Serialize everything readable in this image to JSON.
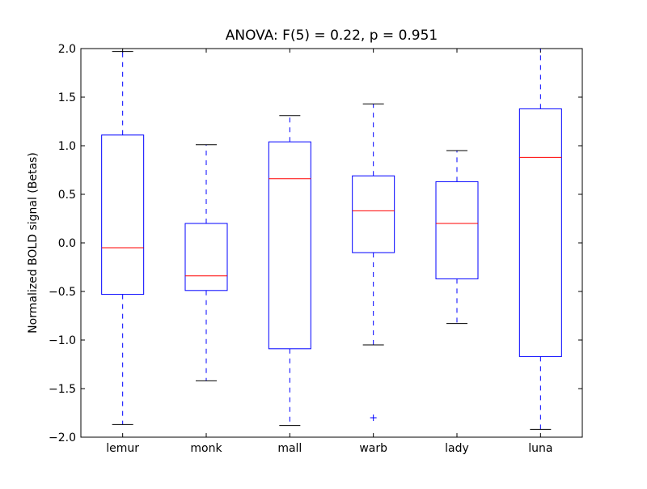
{
  "chart_data": {
    "type": "boxplot",
    "title": "ANOVA: F(5) = 0.22, p = 0.951",
    "xlabel": "",
    "ylabel": "Normalized BOLD signal (Betas)",
    "ylim": [
      -2.0,
      2.0
    ],
    "yticks": [
      -2.0,
      -1.5,
      -1.0,
      -0.5,
      0.0,
      0.5,
      1.0,
      1.5,
      2.0
    ],
    "ytick_labels": [
      "−2.0",
      "−1.5",
      "−1.0",
      "−0.5",
      "0.0",
      "0.5",
      "1.0",
      "1.5",
      "2.0"
    ],
    "categories": [
      "lemur",
      "monk",
      "mall",
      "warb",
      "lady",
      "luna"
    ],
    "boxes": [
      {
        "whisker_low": -1.87,
        "q1": -0.53,
        "median": -0.05,
        "q3": 1.11,
        "whisker_high": 1.97,
        "outliers": []
      },
      {
        "whisker_low": -1.42,
        "q1": -0.49,
        "median": -0.34,
        "q3": 0.2,
        "whisker_high": 1.01,
        "outliers": []
      },
      {
        "whisker_low": -1.88,
        "q1": -1.09,
        "median": 0.66,
        "q3": 1.04,
        "whisker_high": 1.31,
        "outliers": []
      },
      {
        "whisker_low": -1.05,
        "q1": -0.1,
        "median": 0.33,
        "q3": 0.69,
        "whisker_high": 1.43,
        "outliers": [
          -1.8
        ]
      },
      {
        "whisker_low": -0.83,
        "q1": -0.37,
        "median": 0.2,
        "q3": 0.63,
        "whisker_high": 0.95,
        "outliers": []
      },
      {
        "whisker_low": -1.92,
        "q1": -1.17,
        "median": 0.88,
        "q3": 1.38,
        "whisker_high": 2.0,
        "outliers": []
      }
    ],
    "grid": false,
    "colors": {
      "box": "#0000ff",
      "median": "#ff0000",
      "caps": "#000000",
      "outlier": "#0000ff"
    }
  }
}
